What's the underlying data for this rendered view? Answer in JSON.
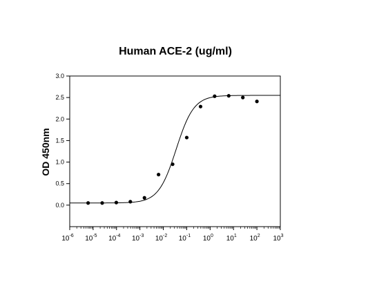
{
  "chart_data": {
    "type": "scatter",
    "title": "Human ACE-2 (ug/ml)",
    "xlabel": "",
    "ylabel": "OD 450nm",
    "x_scale": "log",
    "xlim": [
      1e-06,
      1000
    ],
    "ylim": [
      -0.5,
      3.0
    ],
    "grid": false,
    "legend": "none",
    "y_ticks": [
      "0.0",
      "0.5",
      "1.0",
      "1.5",
      "2.0",
      "2.5",
      "3.0"
    ],
    "x_ticks": [
      {
        "value": 1e-06,
        "base": "10",
        "exp": "-6"
      },
      {
        "value": 1e-05,
        "base": "10",
        "exp": "-5"
      },
      {
        "value": 0.0001,
        "base": "10",
        "exp": "-4"
      },
      {
        "value": 0.001,
        "base": "10",
        "exp": "-3"
      },
      {
        "value": 0.01,
        "base": "10",
        "exp": "-2"
      },
      {
        "value": 0.1,
        "base": "10",
        "exp": "-1"
      },
      {
        "value": 1,
        "base": "10",
        "exp": "0"
      },
      {
        "value": 10,
        "base": "10",
        "exp": "1"
      },
      {
        "value": 100,
        "base": "10",
        "exp": "2"
      },
      {
        "value": 1000,
        "base": "10",
        "exp": "3"
      }
    ],
    "series": [
      {
        "points": [
          {
            "x": 6.1e-06,
            "y": 0.05
          },
          {
            "x": 2.44e-05,
            "y": 0.05
          },
          {
            "x": 9.77e-05,
            "y": 0.06
          },
          {
            "x": 0.00039,
            "y": 0.08
          },
          {
            "x": 0.00156,
            "y": 0.17
          },
          {
            "x": 0.00625,
            "y": 0.71
          },
          {
            "x": 0.025,
            "y": 0.95
          },
          {
            "x": 0.1,
            "y": 1.57
          },
          {
            "x": 0.39,
            "y": 2.29
          },
          {
            "x": 1.56,
            "y": 2.53
          },
          {
            "x": 6.25,
            "y": 2.54
          },
          {
            "x": 25,
            "y": 2.5
          },
          {
            "x": 100,
            "y": 2.41
          }
        ],
        "fit": {
          "model": "4PL",
          "bottom": 0.05,
          "top": 2.55,
          "log_ec50": -1.45,
          "hill": 1.15,
          "x_range": [
            1e-06,
            1000
          ]
        }
      }
    ],
    "colors": {
      "marker": "#000000",
      "curve": "#000000",
      "axis": "#000000"
    }
  }
}
